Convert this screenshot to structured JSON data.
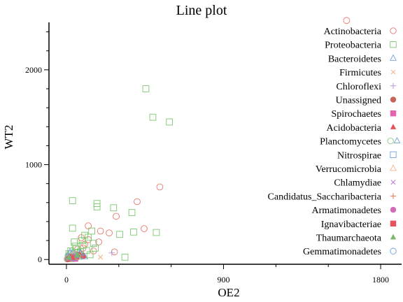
{
  "chart_data": {
    "type": "scatter",
    "title": "Line plot",
    "xlabel": "OE2",
    "ylabel": "WT2",
    "xlim": [
      -100,
      1920
    ],
    "ylim": [
      -50,
      2500
    ],
    "x_ticks": [
      0,
      900,
      1800
    ],
    "x_tick_labels": [
      "0",
      "900",
      "1800"
    ],
    "y_ticks": [
      0,
      1000,
      2000
    ],
    "y_tick_labels": [
      "0",
      "1000",
      "2000"
    ],
    "legend_position": "right",
    "series": [
      {
        "name": "Actinobacteria",
        "marker": "circle-open",
        "color": "#e8766d",
        "points": [
          [
            1605,
            2520
          ],
          [
            535,
            765
          ],
          [
            405,
            610
          ],
          [
            445,
            325
          ],
          [
            125,
            355
          ],
          [
            285,
            455
          ],
          [
            195,
            300
          ],
          [
            245,
            280
          ],
          [
            275,
            80
          ],
          [
            185,
            185
          ],
          [
            125,
            210
          ],
          [
            105,
            160
          ],
          [
            95,
            120
          ],
          [
            75,
            70
          ],
          [
            55,
            45
          ],
          [
            45,
            30
          ],
          [
            35,
            25
          ],
          [
            25,
            15
          ],
          [
            15,
            10
          ],
          [
            5,
            5
          ],
          [
            10,
            40
          ],
          [
            65,
            110
          ],
          [
            85,
            230
          ],
          [
            155,
            90
          ],
          [
            20,
            60
          ]
        ]
      },
      {
        "name": "Proteobacteria",
        "marker": "square-open",
        "color": "#7cc870",
        "points": [
          [
            455,
            1800
          ],
          [
            495,
            1500
          ],
          [
            590,
            1450
          ],
          [
            175,
            590
          ],
          [
            175,
            555
          ],
          [
            270,
            545
          ],
          [
            375,
            495
          ],
          [
            385,
            290
          ],
          [
            305,
            265
          ],
          [
            515,
            285
          ],
          [
            335,
            25
          ],
          [
            35,
            620
          ],
          [
            35,
            330
          ],
          [
            105,
            255
          ],
          [
            125,
            235
          ],
          [
            145,
            300
          ],
          [
            45,
            185
          ],
          [
            95,
            150
          ],
          [
            55,
            110
          ],
          [
            165,
            120
          ],
          [
            15,
            60
          ],
          [
            25,
            90
          ],
          [
            65,
            70
          ],
          [
            75,
            40
          ],
          [
            135,
            50
          ],
          [
            115,
            95
          ],
          [
            40,
            25
          ],
          [
            10,
            15
          ],
          [
            90,
            200
          ],
          [
            155,
            170
          ],
          [
            20,
            35
          ],
          [
            50,
            140
          ],
          [
            80,
            80
          ],
          [
            30,
            10
          ]
        ]
      },
      {
        "name": "Bacteroidetes",
        "marker": "triangle-open",
        "color": "#6fa3d8",
        "points": [
          [
            15,
            30
          ],
          [
            30,
            55
          ],
          [
            55,
            40
          ],
          [
            80,
            65
          ],
          [
            20,
            80
          ],
          [
            45,
            15
          ]
        ]
      },
      {
        "name": "Firmicutes",
        "marker": "x",
        "color": "#f2b48a",
        "points": [
          [
            195,
            25
          ],
          [
            60,
            30
          ],
          [
            10,
            20
          ],
          [
            35,
            45
          ]
        ]
      },
      {
        "name": "Chloroflexi",
        "marker": "plus",
        "color": "#b79ad6",
        "points": [
          [
            260,
            70
          ],
          [
            40,
            35
          ],
          [
            15,
            10
          ],
          [
            85,
            25
          ]
        ]
      },
      {
        "name": "Unassigned",
        "marker": "circle",
        "color": "#c8645a",
        "points": [
          [
            95,
            35
          ],
          [
            45,
            25
          ],
          [
            20,
            15
          ],
          [
            70,
            50
          ],
          [
            10,
            5
          ]
        ]
      },
      {
        "name": "Spirochaetes",
        "marker": "square",
        "color": "#e365b0",
        "points": [
          [
            25,
            20
          ],
          [
            50,
            10
          ]
        ]
      },
      {
        "name": "Acidobacteria",
        "marker": "triangle",
        "color": "#e8525a",
        "points": [
          [
            100,
            40
          ],
          [
            60,
            20
          ],
          [
            30,
            30
          ]
        ]
      },
      {
        "name": "Planctomycetes",
        "marker": "circle-triangle-open",
        "color": "#8ccf83",
        "points": [
          [
            55,
            70
          ],
          [
            25,
            40
          ],
          [
            80,
            30
          ]
        ]
      },
      {
        "name": "Nitrospirae",
        "marker": "square-open",
        "color": "#6fa3d8",
        "points": [
          [
            30,
            60
          ],
          [
            15,
            25
          ]
        ]
      },
      {
        "name": "Verrucomicrobia",
        "marker": "triangle-open",
        "color": "#f2b48a",
        "points": [
          [
            40,
            50
          ],
          [
            20,
            20
          ]
        ]
      },
      {
        "name": "Chlamydiae",
        "marker": "x",
        "color": "#b57ad0",
        "points": [
          [
            35,
            15
          ]
        ]
      },
      {
        "name": "Candidatus_Saccharibacteria",
        "marker": "plus",
        "color": "#e0795a",
        "points": [
          [
            50,
            30
          ],
          [
            25,
            10
          ]
        ]
      },
      {
        "name": "Armatimonadetes",
        "marker": "circle",
        "color": "#d46ab8",
        "points": [
          [
            20,
            15
          ]
        ]
      },
      {
        "name": "Ignavibacteriae",
        "marker": "square",
        "color": "#e8525a",
        "points": [
          [
            30,
            25
          ]
        ]
      },
      {
        "name": "Thaumarchaeota",
        "marker": "triangle",
        "color": "#7cb86c",
        "points": [
          [
            60,
            45
          ],
          [
            15,
            20
          ]
        ]
      },
      {
        "name": "Gemmatimonadetes",
        "marker": "circle-open",
        "color": "#6fa3d8",
        "points": [
          [
            40,
            20
          ]
        ]
      }
    ]
  }
}
